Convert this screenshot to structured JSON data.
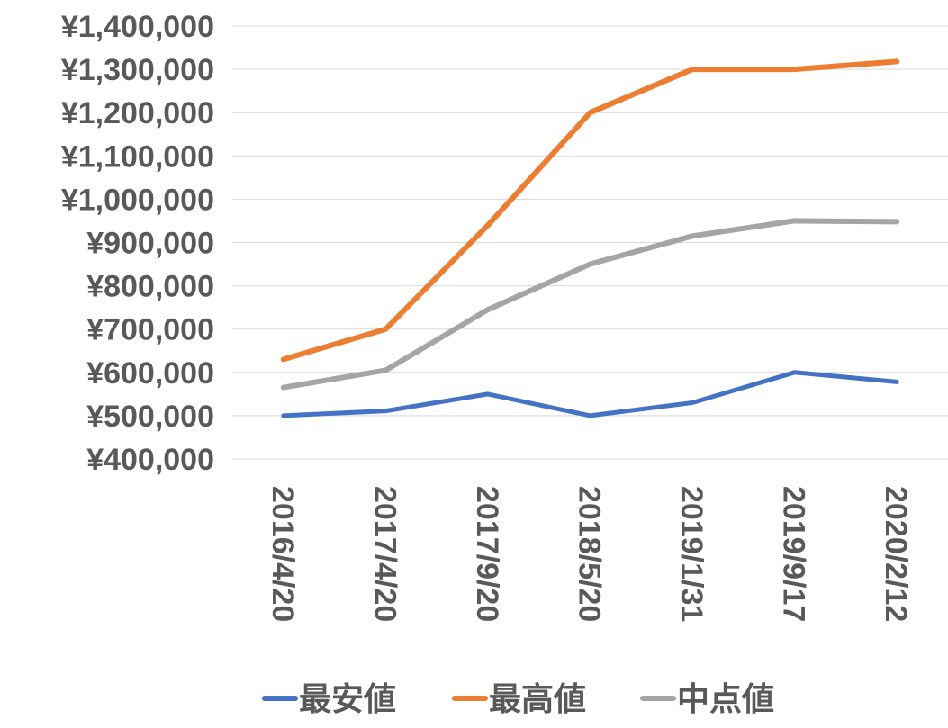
{
  "chart_data": {
    "type": "line",
    "categories": [
      "2016/4/20",
      "2017/4/20",
      "2017/9/20",
      "2018/5/20",
      "2019/1/31",
      "2019/9/17",
      "2020/2/12"
    ],
    "y_tick_labels": [
      "¥400,000",
      "¥500,000",
      "¥600,000",
      "¥700,000",
      "¥800,000",
      "¥900,000",
      "¥1,000,000",
      "¥1,100,000",
      "¥1,200,000",
      "¥1,300,000",
      "¥1,400,000"
    ],
    "ylim": [
      400000,
      1400000
    ],
    "grid": true,
    "legend_position": "bottom",
    "series": [
      {
        "name": "最安値",
        "color": "#4472C4",
        "values": [
          500000,
          511000,
          550000,
          500000,
          530000,
          600000,
          578000
        ]
      },
      {
        "name": "最高値",
        "color": "#ED7D31",
        "values": [
          630000,
          700000,
          940000,
          1200000,
          1300000,
          1300000,
          1318000
        ]
      },
      {
        "name": "中点値",
        "color": "#A5A5A5",
        "values": [
          565000,
          605000,
          745000,
          850000,
          915000,
          950000,
          948000
        ]
      }
    ]
  }
}
